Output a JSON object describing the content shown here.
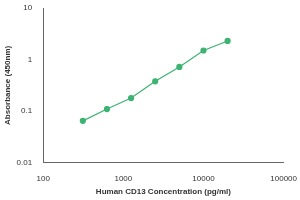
{
  "chart_data": {
    "type": "scatter",
    "x_label": "Human CD13 Concentration (pg/ml)",
    "y_label": "Absorbance (450nm)",
    "x": [
      312.5,
      625,
      1250,
      2500,
      5000,
      10000,
      20000
    ],
    "values": [
      0.065,
      0.11,
      0.18,
      0.38,
      0.72,
      1.5,
      2.3
    ],
    "color": "#3cb371",
    "marker": "circle",
    "line_style": "solid",
    "log": true,
    "xlim": [
      100,
      100000
    ],
    "xticks": [
      100,
      1000,
      10000,
      100000
    ],
    "ylim": [
      0.01,
      10
    ],
    "yticks": [
      0.01,
      0.1,
      1,
      10
    ],
    "grid": false
  }
}
